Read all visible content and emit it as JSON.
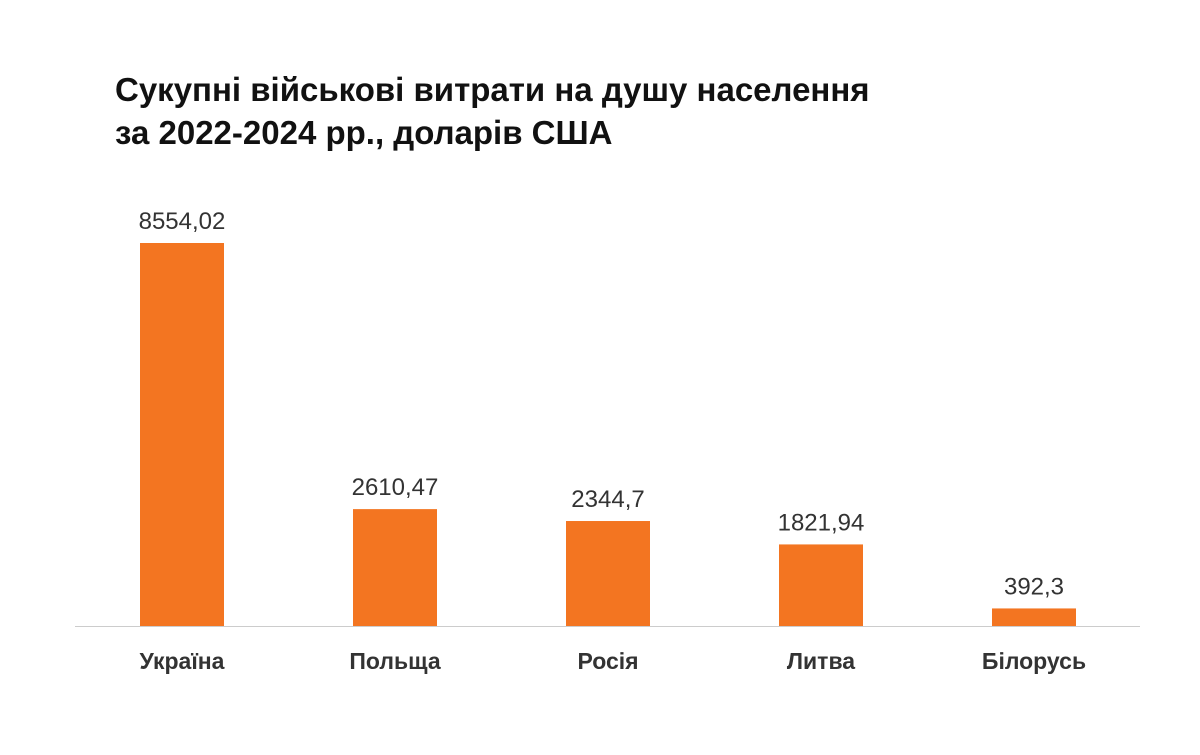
{
  "chart_data": {
    "type": "bar",
    "title_lines": [
      "Сукупні військові витрати на душу населення",
      "за 2022-2024 рр., доларів США"
    ],
    "categories": [
      "Україна",
      "Польща",
      "Росія",
      "Литва",
      "Білорусь"
    ],
    "values": [
      8554.02,
      2610.47,
      2344.7,
      1821.94,
      392.3
    ],
    "value_labels": [
      "8554,02",
      "2610,47",
      "2344,7",
      "1821,94",
      "392,3"
    ],
    "xlabel": "",
    "ylabel": "",
    "ylim": [
      0,
      8554.02
    ],
    "grid": false,
    "legend": "none",
    "colors": {
      "bar": "#F37521",
      "baseline": "#CCCCCC",
      "value_label": "#333333",
      "category_label": "#333333",
      "title": "#111111"
    }
  }
}
